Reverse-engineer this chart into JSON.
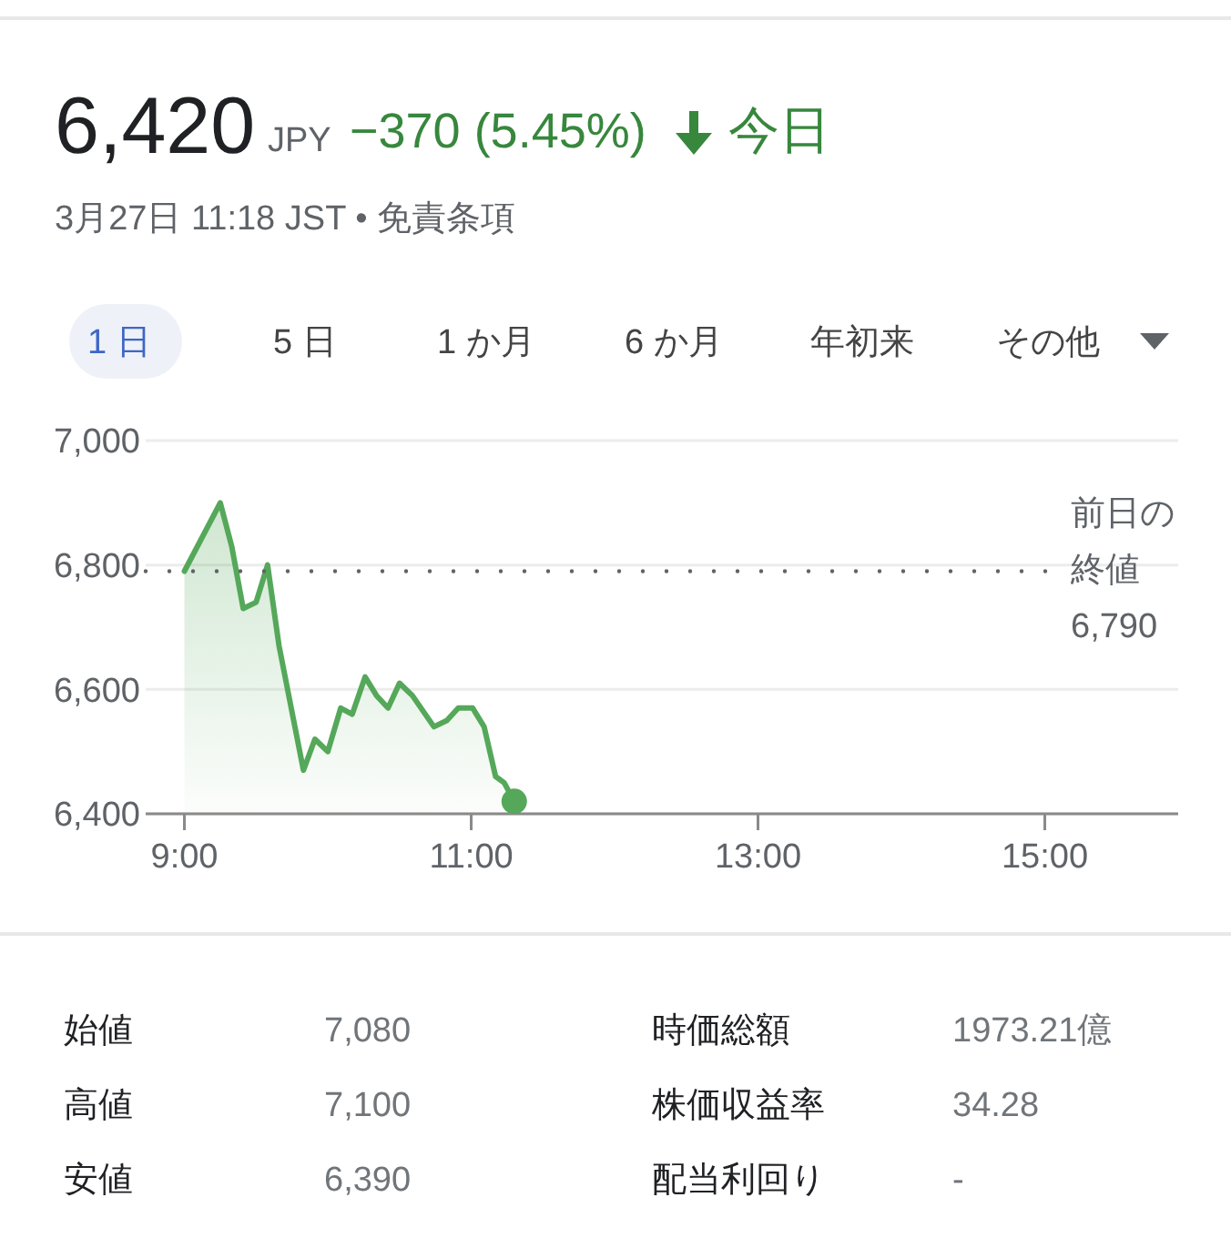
{
  "chart_data": {
    "type": "area",
    "title": "6,420",
    "subtitle": "3月27日 11:18 JST • 免責条項",
    "annotations": [
      "JPY",
      "−370 (5.45%)",
      "今日",
      "1 日",
      "5 日",
      "1 か月",
      "6 か月",
      "年初来",
      "その他",
      "始値",
      "7,080",
      "高値",
      "7,100",
      "安値",
      "6,390",
      "時価総額",
      "1973.21億",
      "株価収益率",
      "34.28",
      "配当利回り",
      "-"
    ],
    "xlim": [
      8.73,
      15.93
    ],
    "xticks": [
      {
        "value": 9,
        "label": "9:00"
      },
      {
        "value": 11,
        "label": "11:00"
      },
      {
        "value": 13,
        "label": "13:00"
      },
      {
        "value": 15,
        "label": "15:00"
      }
    ],
    "ylim": [
      6400,
      7000
    ],
    "yticks": [
      {
        "value": 6400,
        "label": "6,400"
      },
      {
        "value": 6600,
        "label": "6,600"
      },
      {
        "value": 6800,
        "label": "6,800"
      },
      {
        "value": 7000,
        "label": "7,000"
      }
    ],
    "grid": "y",
    "series": [
      {
        "color": "#55a85a",
        "x": [
          9.0,
          9.25,
          9.33,
          9.41,
          9.5,
          9.58,
          9.66,
          9.83,
          9.91,
          10.0,
          10.09,
          10.17,
          10.26,
          10.34,
          10.42,
          10.5,
          10.59,
          10.74,
          10.83,
          10.91,
          11.01,
          11.09,
          11.17,
          11.23,
          11.3
        ],
        "values": [
          6790,
          6900,
          6830,
          6730,
          6740,
          6800,
          6670,
          6470,
          6520,
          6500,
          6570,
          6560,
          6620,
          6590,
          6570,
          6610,
          6590,
          6540,
          6550,
          6570,
          6570,
          6540,
          6460,
          6450,
          6420
        ]
      },
      {
        "type": "scatter",
        "color": "#55a85a",
        "x": [
          11.3
        ],
        "values": [
          6420
        ]
      }
    ],
    "ref_lines": [
      {
        "axis": "y",
        "value": 6790,
        "label": "前日の終値 6,790",
        "color": "#5f6368",
        "line_style": "dotted"
      }
    ]
  }
}
